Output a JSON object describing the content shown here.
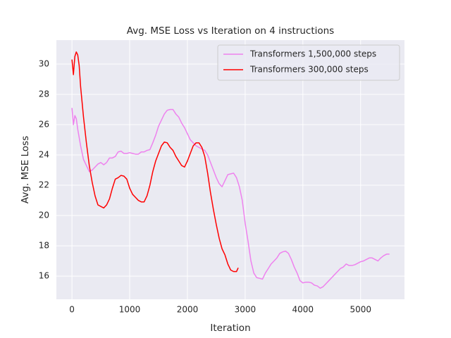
{
  "chart_data": {
    "type": "line",
    "title": "Avg. MSE Loss vs Iteration on 4 instructions",
    "x_label": "Iteration",
    "y_label": "Avg. MSE Loss",
    "xlim": [
      -270,
      5760
    ],
    "ylim": [
      14.47,
      31.58
    ],
    "xticks": [
      0,
      1000,
      2000,
      3000,
      4000,
      5000
    ],
    "yticks": [
      16,
      18,
      20,
      22,
      24,
      26,
      28,
      30
    ],
    "grid": true,
    "legend": "upper right",
    "series": [
      {
        "name": "Transformers 1,500,000 steps",
        "color": "#ee82ee",
        "x": [
          0,
          25,
          50,
          75,
          100,
          150,
          200,
          250,
          300,
          350,
          400,
          450,
          500,
          550,
          600,
          650,
          700,
          750,
          800,
          850,
          900,
          950,
          1000,
          1050,
          1100,
          1150,
          1200,
          1250,
          1300,
          1350,
          1400,
          1450,
          1500,
          1550,
          1600,
          1650,
          1700,
          1750,
          1800,
          1850,
          1900,
          1950,
          2000,
          2050,
          2100,
          2150,
          2200,
          2250,
          2300,
          2350,
          2400,
          2450,
          2500,
          2550,
          2600,
          2650,
          2700,
          2750,
          2800,
          2850,
          2900,
          2950,
          3000,
          3050,
          3100,
          3150,
          3200,
          3250,
          3300,
          3350,
          3400,
          3450,
          3500,
          3550,
          3600,
          3650,
          3700,
          3750,
          3800,
          3850,
          3900,
          3950,
          4000,
          4050,
          4100,
          4150,
          4200,
          4250,
          4300,
          4350,
          4400,
          4450,
          4500,
          4550,
          4600,
          4650,
          4700,
          4750,
          4800,
          4850,
          4900,
          4950,
          5000,
          5050,
          5100,
          5150,
          5200,
          5250,
          5300,
          5350,
          5400,
          5450,
          5500
        ],
        "values": [
          27.1,
          26.0,
          26.6,
          26.4,
          25.7,
          24.6,
          23.7,
          23.3,
          22.9,
          23.0,
          23.2,
          23.4,
          23.5,
          23.35,
          23.5,
          23.8,
          23.8,
          23.9,
          24.2,
          24.25,
          24.1,
          24.1,
          24.15,
          24.1,
          24.05,
          24.05,
          24.2,
          24.2,
          24.3,
          24.35,
          24.8,
          25.3,
          25.9,
          26.3,
          26.7,
          26.95,
          27.0,
          27.0,
          26.7,
          26.5,
          26.1,
          25.8,
          25.4,
          25.0,
          24.8,
          24.6,
          24.5,
          24.4,
          24.3,
          24.0,
          23.5,
          23.0,
          22.5,
          22.1,
          21.9,
          22.3,
          22.7,
          22.75,
          22.8,
          22.5,
          21.9,
          21.0,
          19.5,
          18.3,
          17.0,
          16.2,
          15.9,
          15.85,
          15.8,
          16.2,
          16.5,
          16.8,
          17.0,
          17.2,
          17.5,
          17.6,
          17.65,
          17.5,
          17.1,
          16.6,
          16.2,
          15.7,
          15.55,
          15.6,
          15.6,
          15.55,
          15.4,
          15.35,
          15.2,
          15.3,
          15.5,
          15.7,
          15.9,
          16.1,
          16.3,
          16.5,
          16.6,
          16.8,
          16.7,
          16.7,
          16.75,
          16.85,
          16.95,
          17.0,
          17.1,
          17.2,
          17.2,
          17.1,
          17.0,
          17.2,
          17.35,
          17.45,
          17.45
        ]
      },
      {
        "name": "Transformers 300,000 steps",
        "color": "#ff0000",
        "x": [
          0,
          25,
          50,
          75,
          100,
          125,
          150,
          200,
          250,
          300,
          350,
          400,
          450,
          500,
          550,
          600,
          650,
          700,
          750,
          800,
          850,
          900,
          950,
          1000,
          1050,
          1100,
          1150,
          1200,
          1250,
          1300,
          1350,
          1400,
          1450,
          1500,
          1550,
          1600,
          1650,
          1700,
          1750,
          1800,
          1850,
          1900,
          1950,
          2000,
          2050,
          2100,
          2150,
          2200,
          2250,
          2300,
          2350,
          2400,
          2450,
          2500,
          2550,
          2600,
          2650,
          2700,
          2750,
          2800,
          2850,
          2880
        ],
        "values": [
          30.3,
          29.3,
          30.5,
          30.8,
          30.6,
          29.9,
          28.5,
          26.5,
          24.8,
          23.3,
          22.2,
          21.3,
          20.7,
          20.6,
          20.5,
          20.7,
          21.1,
          21.8,
          22.4,
          22.5,
          22.65,
          22.6,
          22.4,
          21.8,
          21.4,
          21.2,
          21.0,
          20.9,
          20.9,
          21.3,
          22.0,
          22.9,
          23.6,
          24.1,
          24.6,
          24.85,
          24.8,
          24.5,
          24.3,
          23.9,
          23.6,
          23.3,
          23.2,
          23.6,
          24.1,
          24.6,
          24.8,
          24.8,
          24.5,
          23.9,
          22.8,
          21.5,
          20.4,
          19.4,
          18.5,
          17.8,
          17.4,
          16.8,
          16.4,
          16.3,
          16.3,
          16.55
        ]
      }
    ]
  }
}
